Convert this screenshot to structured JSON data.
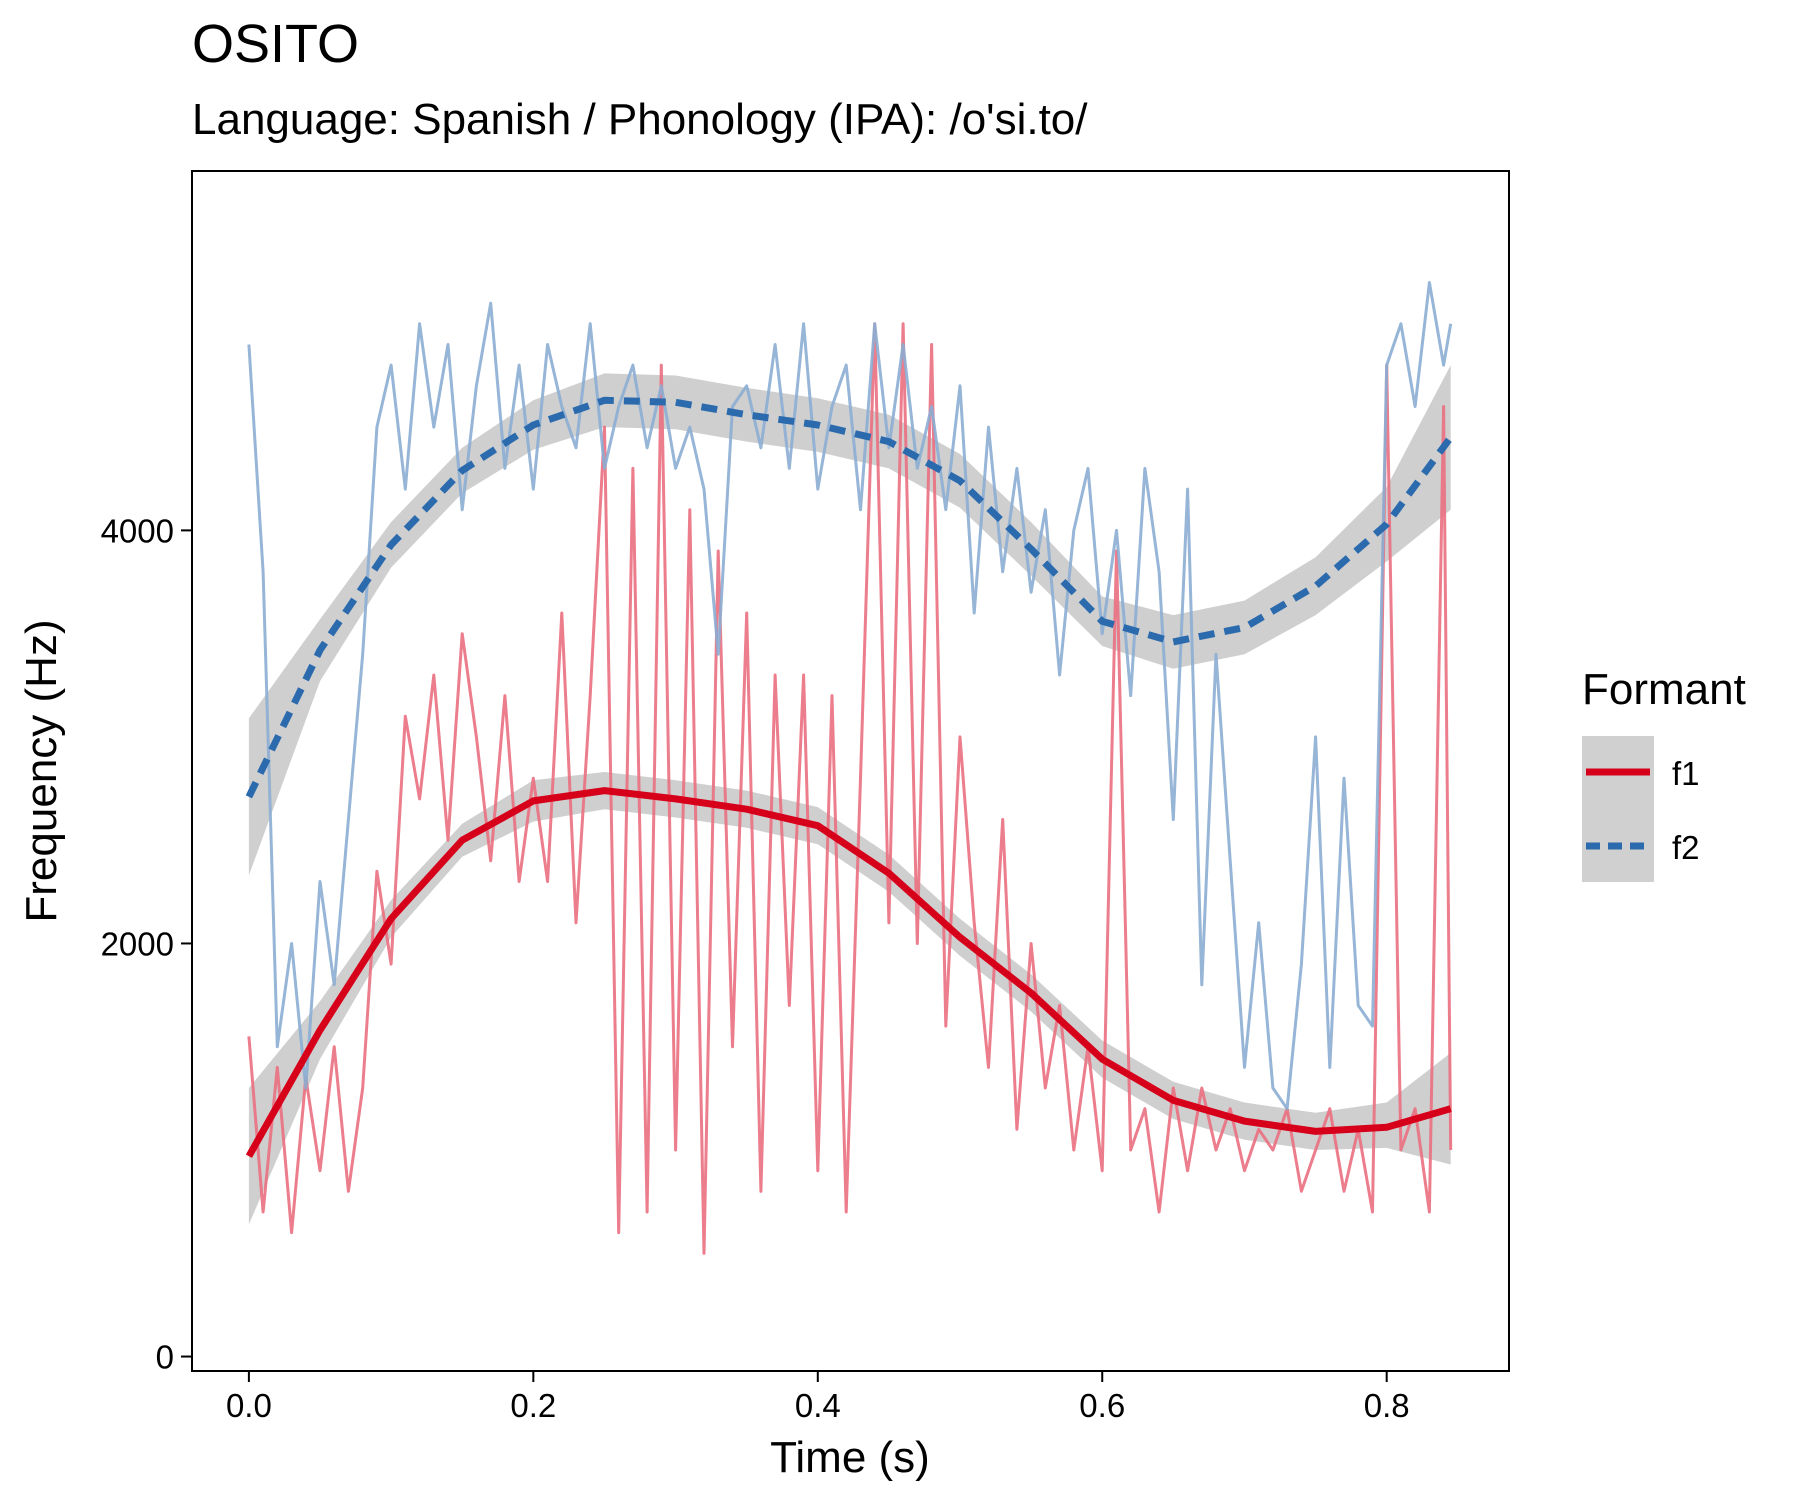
{
  "chart_data": {
    "type": "line",
    "title": "OSITO",
    "subtitle": "Language: Spanish / Phonology (IPA): /o'si.to/",
    "xlabel": "Time (s)",
    "ylabel": "Frequency (Hz)",
    "xlim": [
      -0.04,
      0.886
    ],
    "ylim": [
      -70,
      5740
    ],
    "x_ticks": [
      0,
      0.2,
      0.4,
      0.6,
      0.8
    ],
    "x_tick_labels": [
      "0.0",
      "0.2",
      "0.4",
      "0.6",
      "0.8"
    ],
    "y_ticks": [
      0,
      2000,
      4000
    ],
    "y_tick_labels": [
      "0",
      "2000",
      "4000"
    ],
    "grid": false,
    "legend": {
      "title": "Formant",
      "position": "right",
      "entries": [
        {
          "label": "f1",
          "color": "#d7001a",
          "dash": "solid"
        },
        {
          "label": "f2",
          "color": "#2b6aad",
          "dash": "dashed"
        }
      ]
    },
    "raw_series": [
      {
        "name": "f1",
        "color": "#ea6f80",
        "x": [
          0.0,
          0.01,
          0.02,
          0.03,
          0.04,
          0.05,
          0.06,
          0.07,
          0.08,
          0.09,
          0.1,
          0.11,
          0.12,
          0.13,
          0.14,
          0.15,
          0.16,
          0.17,
          0.18,
          0.19,
          0.2,
          0.21,
          0.22,
          0.23,
          0.24,
          0.25,
          0.26,
          0.27,
          0.28,
          0.29,
          0.3,
          0.31,
          0.32,
          0.33,
          0.34,
          0.35,
          0.36,
          0.37,
          0.38,
          0.39,
          0.4,
          0.41,
          0.42,
          0.43,
          0.44,
          0.45,
          0.46,
          0.47,
          0.48,
          0.49,
          0.5,
          0.51,
          0.52,
          0.53,
          0.54,
          0.55,
          0.56,
          0.57,
          0.58,
          0.59,
          0.6,
          0.61,
          0.62,
          0.63,
          0.64,
          0.65,
          0.66,
          0.67,
          0.68,
          0.69,
          0.7,
          0.71,
          0.72,
          0.73,
          0.74,
          0.75,
          0.76,
          0.77,
          0.78,
          0.79,
          0.8,
          0.81,
          0.82,
          0.83,
          0.84,
          0.845
        ],
        "y": [
          1550,
          700,
          1400,
          600,
          1350,
          900,
          1500,
          800,
          1300,
          2350,
          1900,
          3100,
          2700,
          3300,
          2500,
          3500,
          3000,
          2400,
          3200,
          2300,
          2800,
          2300,
          3600,
          2100,
          3200,
          4500,
          600,
          4300,
          700,
          4800,
          1000,
          4100,
          500,
          3900,
          1500,
          3600,
          800,
          3300,
          1700,
          3300,
          900,
          3200,
          700,
          2800,
          5000,
          2100,
          5000,
          2000,
          4900,
          1600,
          3000,
          2100,
          1400,
          2600,
          1100,
          2000,
          1300,
          1700,
          1000,
          1500,
          900,
          3900,
          1000,
          1200,
          700,
          1300,
          900,
          1300,
          1000,
          1200,
          900,
          1100,
          1000,
          1200,
          800,
          1000,
          1200,
          800,
          1100,
          700,
          4800,
          1000,
          1200,
          700,
          4600,
          1000
        ]
      },
      {
        "name": "f2",
        "color": "#8badd3",
        "x": [
          0.0,
          0.01,
          0.02,
          0.03,
          0.04,
          0.05,
          0.06,
          0.07,
          0.08,
          0.09,
          0.1,
          0.11,
          0.12,
          0.13,
          0.14,
          0.15,
          0.16,
          0.17,
          0.18,
          0.19,
          0.2,
          0.21,
          0.22,
          0.23,
          0.24,
          0.25,
          0.26,
          0.27,
          0.28,
          0.29,
          0.3,
          0.31,
          0.32,
          0.33,
          0.34,
          0.35,
          0.36,
          0.37,
          0.38,
          0.39,
          0.4,
          0.41,
          0.42,
          0.43,
          0.44,
          0.45,
          0.46,
          0.47,
          0.48,
          0.49,
          0.5,
          0.51,
          0.52,
          0.53,
          0.54,
          0.55,
          0.56,
          0.57,
          0.58,
          0.59,
          0.6,
          0.61,
          0.62,
          0.63,
          0.64,
          0.65,
          0.66,
          0.67,
          0.68,
          0.69,
          0.7,
          0.71,
          0.72,
          0.73,
          0.74,
          0.75,
          0.76,
          0.77,
          0.78,
          0.79,
          0.8,
          0.81,
          0.82,
          0.83,
          0.84,
          0.845
        ],
        "y": [
          4900,
          3800,
          1500,
          2000,
          1300,
          2300,
          1800,
          2600,
          3400,
          4500,
          4800,
          4200,
          5000,
          4500,
          4900,
          4100,
          4700,
          5100,
          4300,
          4800,
          4200,
          4900,
          4600,
          4400,
          5000,
          4300,
          4600,
          4800,
          4400,
          4700,
          4300,
          4500,
          4200,
          3400,
          4600,
          4700,
          4400,
          4900,
          4300,
          5000,
          4200,
          4600,
          4800,
          4100,
          5000,
          4400,
          4900,
          4300,
          4600,
          4100,
          4700,
          3600,
          4500,
          3800,
          4300,
          3700,
          4100,
          3300,
          4000,
          4300,
          3500,
          4000,
          3200,
          4300,
          3800,
          2600,
          4200,
          1800,
          3400,
          2400,
          1400,
          2100,
          1300,
          1200,
          1900,
          3000,
          1400,
          2800,
          1700,
          1600,
          4800,
          5000,
          4600,
          5200,
          4800,
          5000
        ]
      }
    ],
    "series": [
      {
        "name": "f1",
        "color": "#d7001a",
        "dash": "solid",
        "x": [
          0.0,
          0.05,
          0.1,
          0.15,
          0.2,
          0.25,
          0.3,
          0.35,
          0.4,
          0.45,
          0.5,
          0.55,
          0.6,
          0.65,
          0.7,
          0.75,
          0.8,
          0.845
        ],
        "y": [
          970,
          1580,
          2120,
          2500,
          2690,
          2740,
          2700,
          2650,
          2570,
          2340,
          2030,
          1760,
          1440,
          1240,
          1140,
          1090,
          1110,
          1200
        ],
        "ci_low": [
          640,
          1440,
          2030,
          2420,
          2590,
          2650,
          2610,
          2560,
          2480,
          2250,
          1940,
          1670,
          1350,
          1150,
          1050,
          1000,
          1010,
          930
        ],
        "ci_high": [
          1300,
          1720,
          2210,
          2580,
          2790,
          2830,
          2790,
          2740,
          2660,
          2430,
          2120,
          1850,
          1530,
          1330,
          1230,
          1180,
          1230,
          1470
        ]
      },
      {
        "name": "f2",
        "color": "#2b6aad",
        "dash": "dashed",
        "x": [
          0.0,
          0.05,
          0.1,
          0.15,
          0.2,
          0.25,
          0.3,
          0.35,
          0.4,
          0.45,
          0.5,
          0.55,
          0.6,
          0.65,
          0.7,
          0.75,
          0.8,
          0.845
        ],
        "y": [
          2710,
          3420,
          3930,
          4290,
          4510,
          4630,
          4620,
          4560,
          4510,
          4430,
          4240,
          3910,
          3560,
          3460,
          3530,
          3730,
          4030,
          4450
        ],
        "ci_low": [
          2330,
          3270,
          3820,
          4180,
          4390,
          4500,
          4490,
          4430,
          4380,
          4300,
          4110,
          3780,
          3440,
          3330,
          3400,
          3590,
          3850,
          4100
        ],
        "ci_high": [
          3090,
          3570,
          4040,
          4400,
          4630,
          4760,
          4750,
          4690,
          4640,
          4560,
          4370,
          4040,
          3680,
          3590,
          3660,
          3870,
          4210,
          4800
        ]
      }
    ]
  }
}
